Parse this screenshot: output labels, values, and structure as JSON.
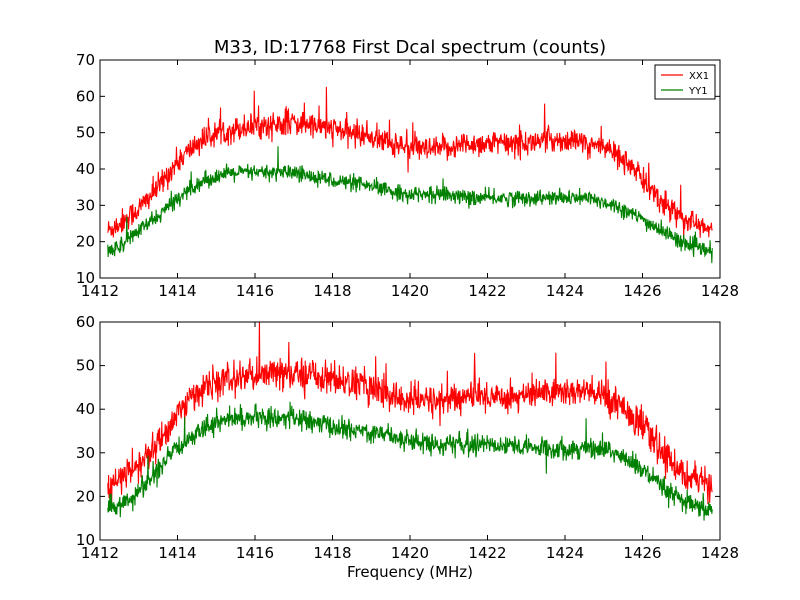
{
  "figure": {
    "title": "M33, ID:17768 First Dcal spectrum (counts)"
  },
  "chart_data": [
    {
      "type": "line",
      "title": "M33, ID:17768 First Dcal spectrum (counts)",
      "xlabel": "",
      "ylabel": "",
      "xlim": [
        1412,
        1428
      ],
      "ylim": [
        10,
        70
      ],
      "xticks": [
        "1412",
        "1414",
        "1416",
        "1418",
        "1420",
        "1422",
        "1424",
        "1426",
        "1428"
      ],
      "yticks": [
        "10",
        "20",
        "30",
        "40",
        "50",
        "60",
        "70"
      ],
      "legend": {
        "placement": "top-right",
        "entries": [
          "XX1",
          "YY1"
        ]
      },
      "grid": false,
      "series": [
        {
          "name": "XX1",
          "color": "#ff0000",
          "x": [
            1412.2,
            1412.5,
            1413.0,
            1413.5,
            1414.0,
            1414.5,
            1415.0,
            1415.5,
            1416.0,
            1416.5,
            1417.0,
            1417.5,
            1418.0,
            1418.5,
            1419.0,
            1419.5,
            1420.0,
            1420.5,
            1421.0,
            1421.5,
            1422.0,
            1422.5,
            1423.0,
            1423.5,
            1424.0,
            1424.5,
            1425.0,
            1425.5,
            1426.0,
            1426.5,
            1427.0,
            1427.5,
            1427.8
          ],
          "values": [
            23,
            25,
            29,
            35,
            42,
            47,
            50,
            51,
            52,
            52,
            53,
            52,
            51,
            50,
            49,
            47,
            46,
            45,
            46,
            47,
            47,
            47,
            47,
            48,
            48,
            47,
            46,
            43,
            37,
            31,
            27,
            24,
            23
          ],
          "noise": 3.2
        },
        {
          "name": "YY1",
          "color": "#008000",
          "x": [
            1412.2,
            1412.5,
            1413.0,
            1413.5,
            1414.0,
            1414.5,
            1415.0,
            1415.5,
            1416.0,
            1416.5,
            1417.0,
            1417.5,
            1418.0,
            1418.5,
            1419.0,
            1419.5,
            1420.0,
            1420.5,
            1421.0,
            1421.5,
            1422.0,
            1422.5,
            1423.0,
            1423.5,
            1424.0,
            1424.5,
            1425.0,
            1425.5,
            1426.0,
            1426.5,
            1427.0,
            1427.5,
            1427.8
          ],
          "values": [
            17,
            19,
            23,
            27,
            32,
            36,
            38,
            39,
            39,
            39,
            39,
            38,
            37,
            36,
            35,
            34,
            33,
            33,
            33,
            32,
            32,
            32,
            32,
            32,
            32,
            32,
            31,
            29,
            26,
            23,
            20,
            18,
            17
          ],
          "noise": 2.0
        }
      ]
    },
    {
      "type": "line",
      "title": "",
      "xlabel": "Frequency (MHz)",
      "ylabel": "",
      "xlim": [
        1412,
        1428
      ],
      "ylim": [
        10,
        60
      ],
      "xticks": [
        "1412",
        "1414",
        "1416",
        "1418",
        "1420",
        "1422",
        "1424",
        "1426",
        "1428"
      ],
      "yticks": [
        "10",
        "20",
        "30",
        "40",
        "50",
        "60"
      ],
      "grid": false,
      "series": [
        {
          "color": "#ff0000",
          "x": [
            1412.2,
            1412.5,
            1413.0,
            1413.5,
            1414.0,
            1414.5,
            1415.0,
            1415.5,
            1416.0,
            1416.5,
            1417.0,
            1417.5,
            1418.0,
            1418.5,
            1419.0,
            1419.5,
            1420.0,
            1420.5,
            1421.0,
            1421.5,
            1422.0,
            1422.5,
            1423.0,
            1423.5,
            1424.0,
            1424.5,
            1425.0,
            1425.5,
            1426.0,
            1426.5,
            1427.0,
            1427.5,
            1427.8
          ],
          "values": [
            21,
            24,
            27,
            32,
            39,
            44,
            46,
            47,
            48,
            48,
            48,
            48,
            47,
            46,
            45,
            43,
            42,
            42,
            42,
            43,
            43,
            43,
            43,
            44,
            44,
            44,
            43,
            41,
            36,
            30,
            26,
            23,
            22
          ],
          "noise": 3.4
        },
        {
          "color": "#008000",
          "x": [
            1412.2,
            1412.5,
            1413.0,
            1413.5,
            1414.0,
            1414.5,
            1415.0,
            1415.5,
            1416.0,
            1416.5,
            1417.0,
            1417.5,
            1418.0,
            1418.5,
            1419.0,
            1419.5,
            1420.0,
            1420.5,
            1421.0,
            1421.5,
            1422.0,
            1422.5,
            1423.0,
            1423.5,
            1424.0,
            1424.5,
            1425.0,
            1425.5,
            1426.0,
            1426.5,
            1427.0,
            1427.5,
            1427.8
          ],
          "values": [
            17,
            18,
            21,
            26,
            31,
            35,
            37,
            38,
            38,
            38,
            38,
            37,
            36,
            35,
            35,
            34,
            33,
            32,
            32,
            32,
            32,
            32,
            31,
            31,
            31,
            31,
            31,
            29,
            26,
            22,
            19,
            17,
            17
          ],
          "noise": 2.2
        }
      ]
    }
  ]
}
